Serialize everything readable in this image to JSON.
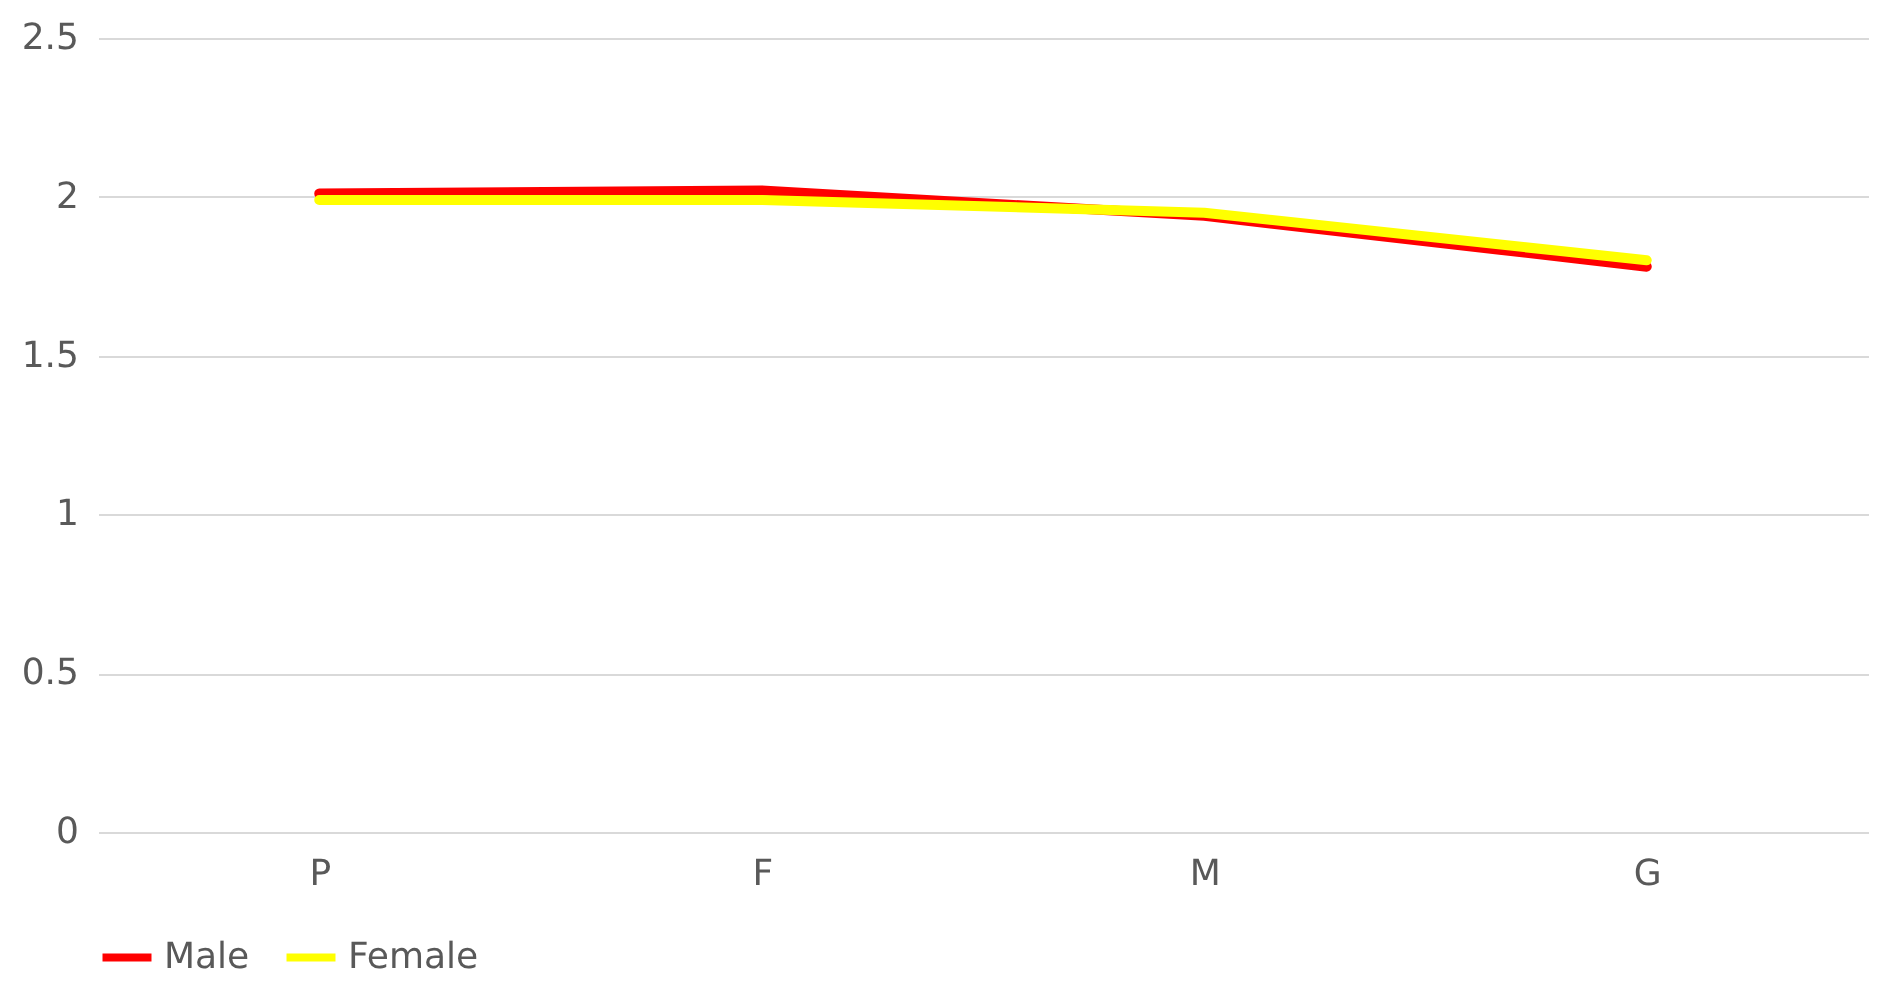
{
  "chart_data": {
    "type": "line",
    "categories": [
      "P",
      "F",
      "M",
      "G"
    ],
    "series": [
      {
        "name": "Male",
        "color": "#ff0000",
        "values": [
          2.01,
          2.02,
          1.94,
          1.78
        ]
      },
      {
        "name": "Female",
        "color": "#ffff00",
        "values": [
          1.99,
          1.99,
          1.95,
          1.8
        ]
      }
    ],
    "ylim": [
      0,
      2.5
    ],
    "yticks": [
      0,
      0.5,
      1,
      1.5,
      2,
      2.5
    ],
    "grid": "y",
    "legend": "bottom",
    "marker": "none",
    "line_style": "solid"
  }
}
